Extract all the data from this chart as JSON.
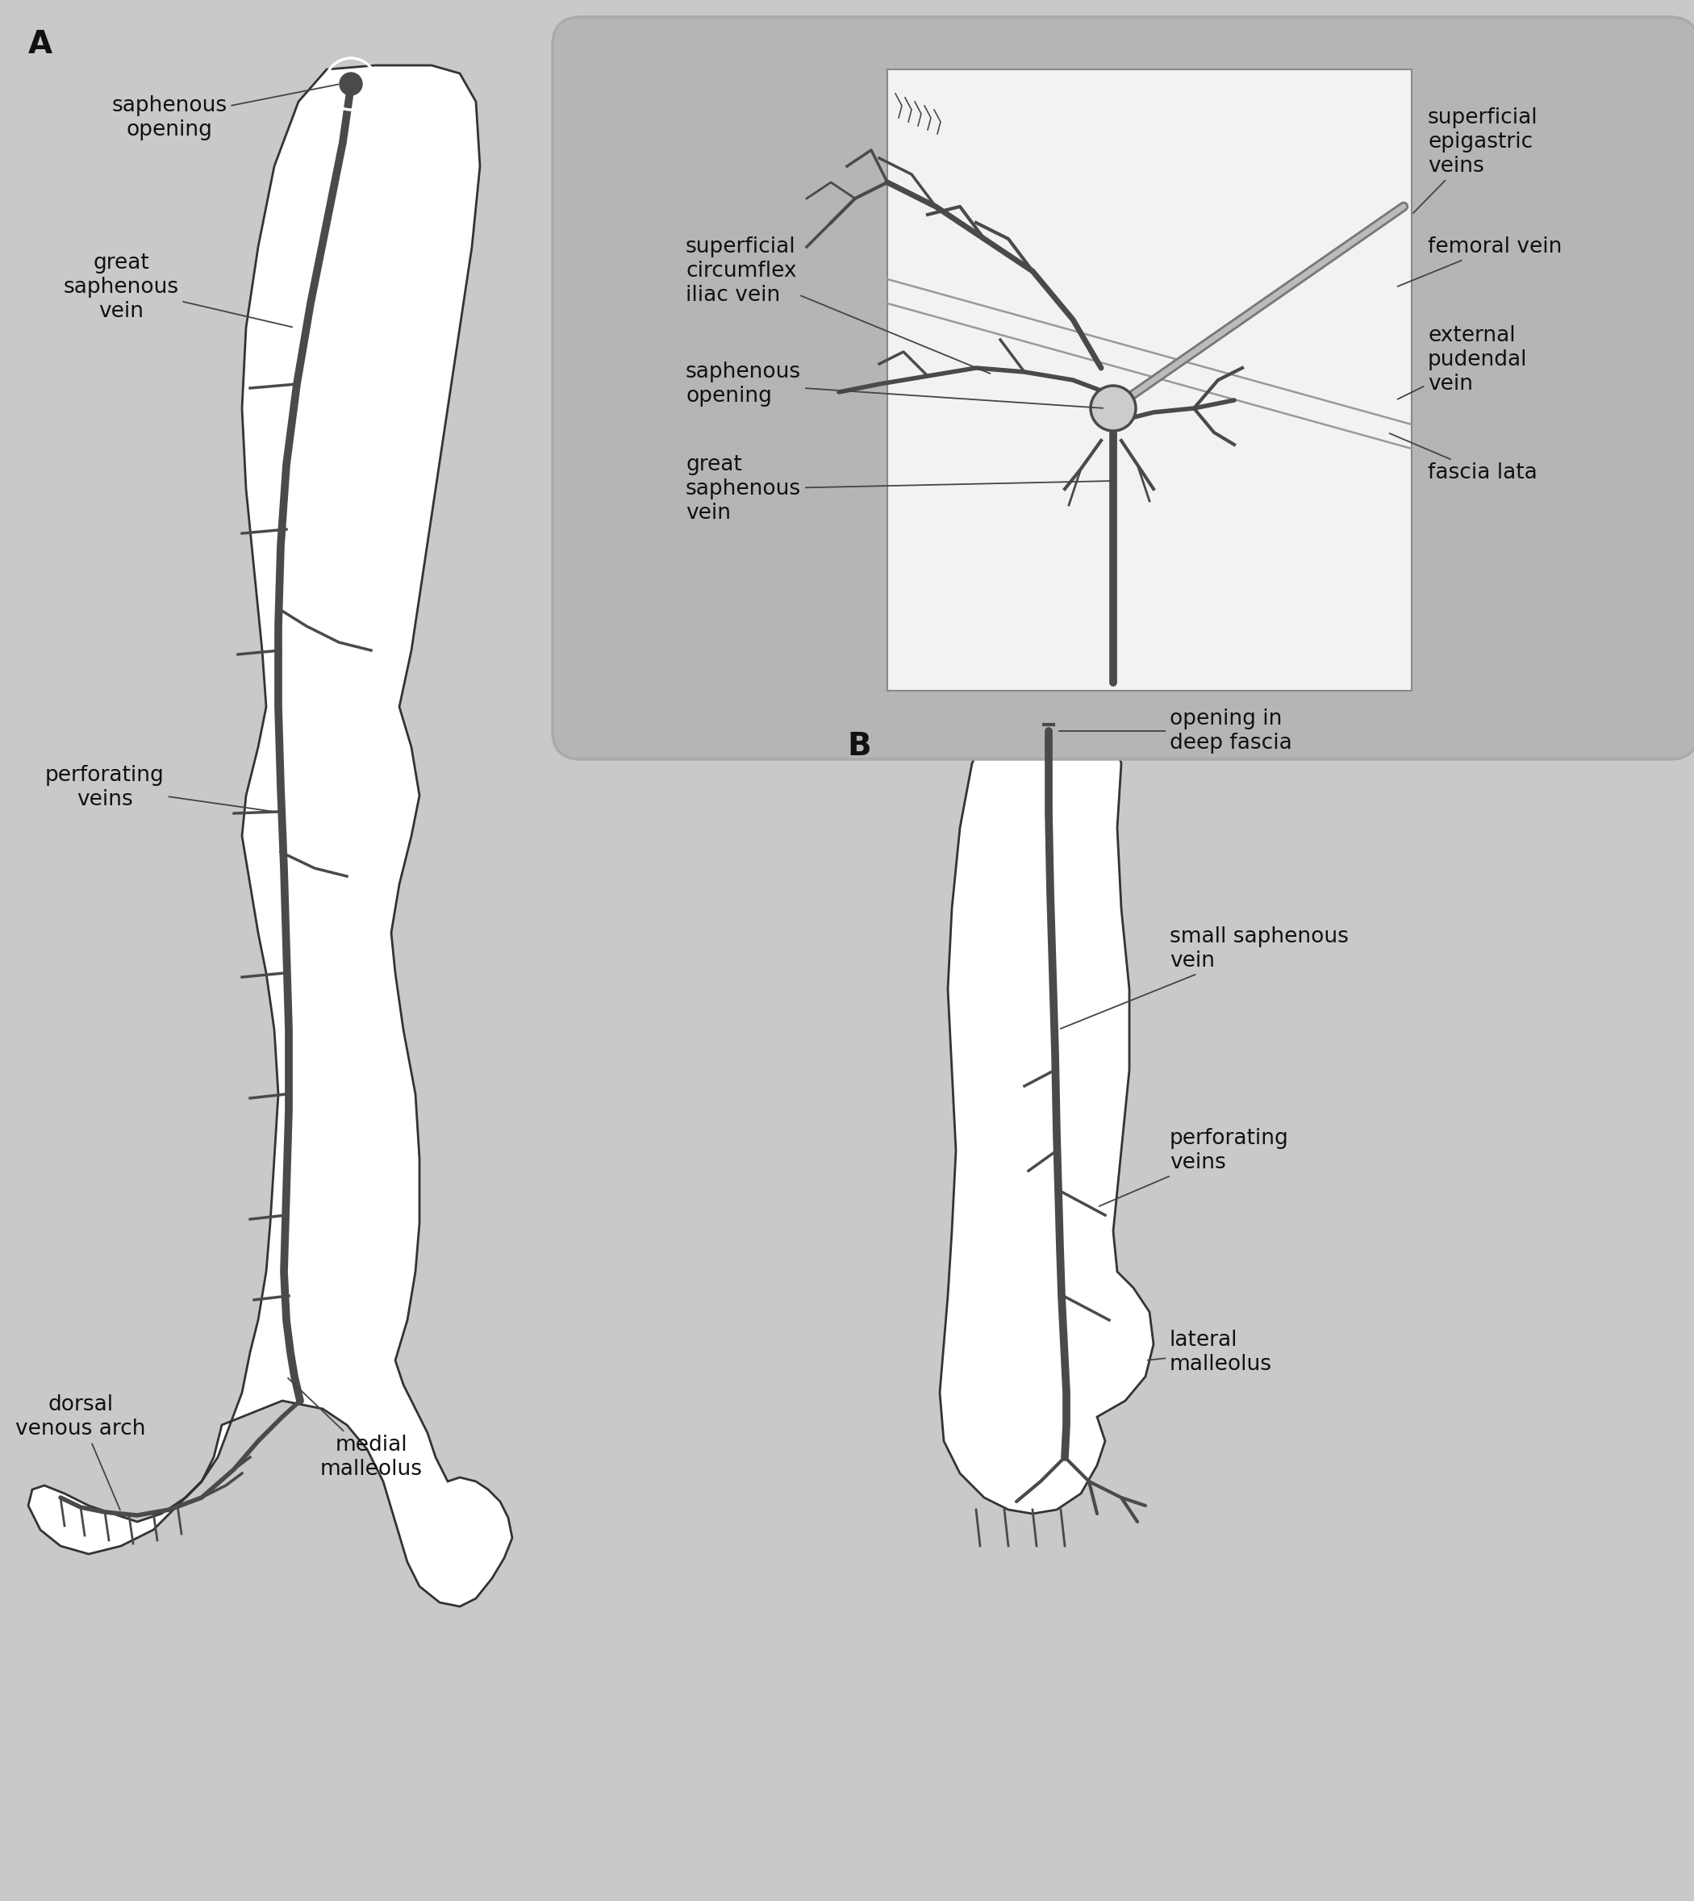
{
  "bg_color": "#c9c9c9",
  "inset_bg": "#b5b5b5",
  "inset_inner_bg": "#f0f0f0",
  "vein_color": "#4a4a4a",
  "leg_fill": "#ffffff",
  "leg_outline": "#333333",
  "label_fontsize": 19,
  "panel_label_fontsize": 28,
  "labels_A": {
    "saphenous_opening": "saphenous\nopening",
    "great_saphenous_vein": "great\nsaphenous\nvein",
    "perforating_veins": "perforating\nveins",
    "dorsal_venous_arch": "dorsal\nvenous arch",
    "medial_malleolus": "medial\nmalleolus"
  },
  "labels_inset_left": {
    "superficial_circumflex": "superficial\ncircumflex\niliac vein",
    "saphenous_opening": "saphenous\nopening",
    "great_saphenous_vein": "great\nsaphenous\nvein"
  },
  "labels_inset_right": {
    "superficial_epigastric": "superficial\nepigastric\nveins",
    "femoral_vein": "femoral vein",
    "external_pudendal": "external\npudendal\nvein",
    "fascia_lata": "fascia lata"
  },
  "labels_B": {
    "opening_deep_fascia": "opening in\ndeep fascia",
    "small_saphenous_vein": "small saphenous\nvein",
    "perforating_veins": "perforating\nveins",
    "lateral_malleolus": "lateral\nmalleolus"
  }
}
